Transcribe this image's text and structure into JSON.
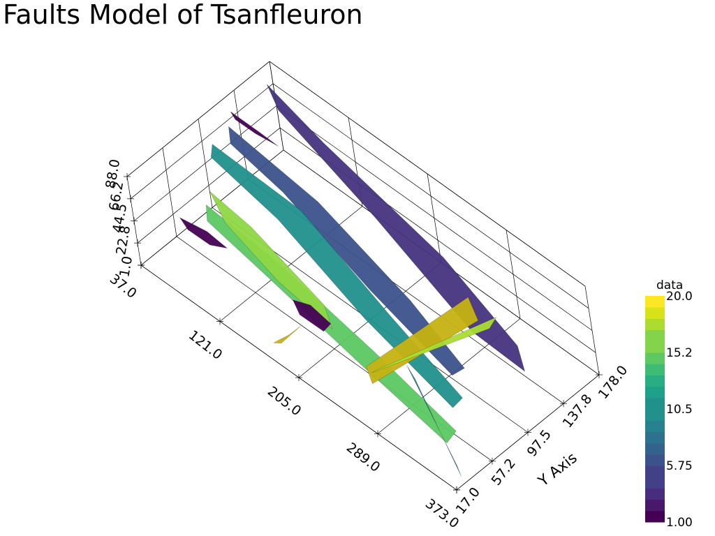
{
  "title": "Faults Model of Tsanfleuron",
  "chart_data": {
    "type": "3d-voxel",
    "title": "Faults Model of Tsanfleuron",
    "x_axis": {
      "label": "",
      "ticks": [
        "37.0",
        "121.0",
        "205.0",
        "289.0",
        "373.0"
      ],
      "range": [
        37,
        373
      ]
    },
    "y_axis": {
      "label": "Y Axis",
      "ticks": [
        "17.0",
        "57.2",
        "97.5",
        "137.8",
        "178.0"
      ],
      "range": [
        17,
        178
      ]
    },
    "z_axis": {
      "label": "",
      "ticks": [
        "1.0",
        "22.8",
        "44.5",
        "66.2",
        "88.0"
      ],
      "range": [
        1,
        88
      ]
    },
    "colorbar": {
      "title": "data",
      "labels": [
        "20.0",
        "15.2",
        "10.5",
        "5.75",
        "1.00"
      ],
      "range": [
        1,
        20
      ],
      "colormap": "viridis",
      "n_levels": 20
    },
    "grid": true,
    "series": [
      {
        "value": 2,
        "color": "#46337e"
      },
      {
        "value": 3,
        "color": "#3b528b"
      },
      {
        "value": 6,
        "color": "#2c728e"
      },
      {
        "value": 9,
        "color": "#21908d"
      },
      {
        "value": 12,
        "color": "#27ad81"
      },
      {
        "value": 14,
        "color": "#5cc863"
      },
      {
        "value": 16,
        "color": "#8fd744"
      },
      {
        "value": 18,
        "color": "#aadc32"
      },
      {
        "value": 20,
        "color": "#c6b212"
      },
      {
        "value": 1,
        "color": "#440154"
      }
    ]
  }
}
